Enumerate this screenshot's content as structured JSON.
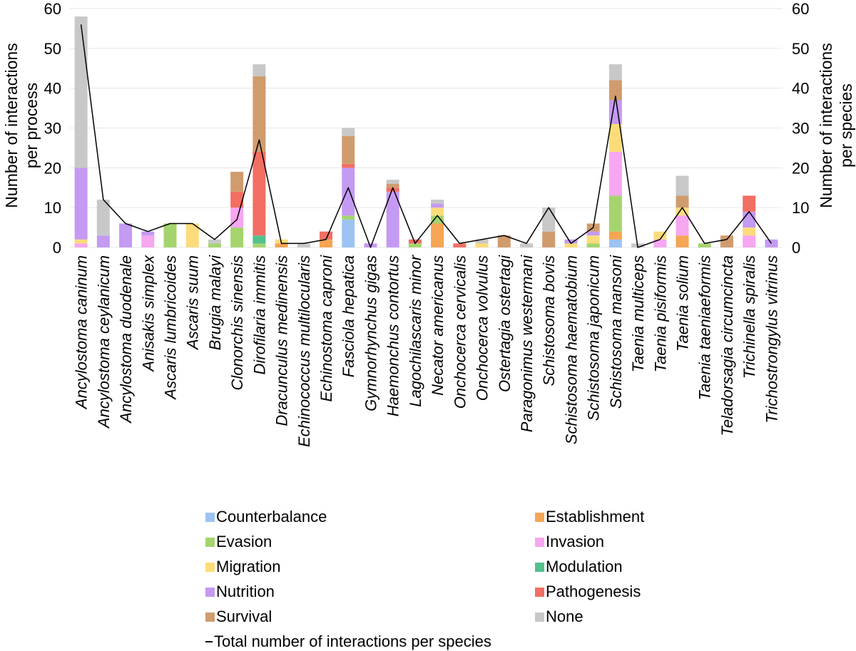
{
  "chart_data": {
    "type": "bar",
    "stacked": true,
    "categories": [
      "Ancylostoma caninum",
      "Ancylostoma ceylanicum",
      "Ancylostoma duodenale",
      "Anisakis simplex",
      "Ascaris lumbricoides",
      "Ascaris suum",
      "Brugia malayi",
      "Clonorchis sinensis",
      "Dirofilaria immitis",
      "Dracunculus medinensis",
      "Echinococcus multilocularis",
      "Echinostoma caproni",
      "Fasciola hepatica",
      "Gymnorhynchus gigas",
      "Haemonchus contortus",
      "Lagochilascaris minor",
      "Necator americanus",
      "Onchocerca cervicalis",
      "Onchocerca volvulus",
      "Ostertagia ostertagi",
      "Paragonimus westermani",
      "Schistosoma bovis",
      "Schistosoma haematobium",
      "Schistosoma japonicum",
      "Schistosoma mansoni",
      "Taenia multiceps",
      "Taenia pisiformis",
      "Taenia solium",
      "Taenia taeniaeformis",
      "Teladorsagia circumcincta",
      "Trichinella spiralis",
      "Trichostrongylus vitrinus"
    ],
    "series": [
      {
        "name": "Counterbalance",
        "color": "#9DC3F2",
        "values": [
          0,
          0,
          0,
          0,
          0,
          0,
          0,
          0,
          0,
          0,
          0,
          0,
          7,
          0,
          0,
          0,
          0,
          0,
          0,
          0,
          0,
          0,
          0,
          0,
          2,
          0,
          0,
          0,
          0,
          0,
          0,
          0
        ]
      },
      {
        "name": "Establishment",
        "color": "#F5A554",
        "values": [
          0,
          0,
          0,
          0,
          0,
          0,
          0,
          0,
          0,
          1,
          0,
          2,
          0,
          0,
          0,
          0,
          6,
          0,
          0,
          0,
          0,
          0,
          0,
          0,
          2,
          0,
          0,
          3,
          0,
          0,
          0,
          0
        ]
      },
      {
        "name": "Evasion",
        "color": "#A5D46E",
        "values": [
          0,
          0,
          0,
          0,
          6,
          0,
          1,
          5,
          1,
          0,
          0,
          0,
          1,
          0,
          0,
          1,
          2,
          0,
          0,
          0,
          0,
          0,
          0,
          1,
          9,
          0,
          0,
          0,
          1,
          0,
          0,
          0
        ]
      },
      {
        "name": "Invasion",
        "color": "#F7A6F0",
        "values": [
          1,
          0,
          0,
          3,
          0,
          0,
          0,
          5,
          0,
          0,
          0,
          0,
          0,
          0,
          0,
          0,
          0,
          0,
          0,
          0,
          0,
          0,
          0,
          0,
          11,
          0,
          2,
          5,
          0,
          0,
          3,
          0
        ]
      },
      {
        "name": "Migration",
        "color": "#FCDC7A",
        "values": [
          1,
          0,
          0,
          0,
          0,
          6,
          0,
          0,
          0,
          1,
          0,
          0,
          0,
          0,
          0,
          0,
          2,
          0,
          1,
          0,
          0,
          0,
          1,
          2,
          7,
          0,
          2,
          2,
          0,
          0,
          2,
          0
        ]
      },
      {
        "name": "Modulation",
        "color": "#52C18D",
        "values": [
          0,
          0,
          0,
          0,
          0,
          0,
          0,
          0,
          2,
          0,
          0,
          0,
          0,
          0,
          0,
          0,
          0,
          0,
          0,
          0,
          0,
          0,
          0,
          0,
          0,
          0,
          0,
          0,
          0,
          0,
          0,
          0
        ]
      },
      {
        "name": "Nutrition",
        "color": "#C49AF2",
        "values": [
          18,
          3,
          6,
          1,
          0,
          0,
          0,
          0,
          0,
          0,
          0,
          0,
          12,
          1,
          14,
          0,
          1,
          0,
          0,
          0,
          0,
          0,
          1,
          1,
          6,
          0,
          0,
          0,
          0,
          0,
          4,
          2
        ]
      },
      {
        "name": "Pathogenesis",
        "color": "#F36E63",
        "values": [
          0,
          0,
          0,
          0,
          0,
          0,
          0,
          4,
          21,
          0,
          0,
          2,
          1,
          0,
          1,
          1,
          0,
          1,
          0,
          0,
          0,
          0,
          0,
          0,
          0,
          0,
          0,
          0,
          0,
          0,
          4,
          0
        ]
      },
      {
        "name": "Survival",
        "color": "#D09C6E",
        "values": [
          0,
          0,
          0,
          0,
          0,
          0,
          0,
          5,
          19,
          0,
          0,
          0,
          7,
          0,
          1,
          0,
          0,
          0,
          0,
          3,
          0,
          4,
          0,
          2,
          5,
          0,
          0,
          3,
          0,
          3,
          0,
          0
        ]
      },
      {
        "name": "None",
        "color": "#C8C8C8",
        "values": [
          38,
          9,
          0,
          0,
          0,
          0,
          1,
          0,
          3,
          0,
          1,
          0,
          2,
          0,
          1,
          0,
          1,
          0,
          1,
          0,
          1,
          6,
          0,
          0,
          4,
          1,
          0,
          5,
          0,
          0,
          0,
          0
        ]
      }
    ],
    "line": {
      "name": "Total number of interactions per species",
      "color": "#000000",
      "values": [
        56,
        12,
        6,
        4,
        6,
        6,
        2,
        7,
        27,
        1,
        1,
        2,
        15,
        0,
        15,
        1,
        8,
        1,
        2,
        3,
        1,
        10,
        1,
        5,
        38,
        0,
        2,
        10,
        1,
        2,
        9,
        1
      ]
    },
    "ylabel_left": "Number of interactions per process",
    "ylabel_right": "Number of interactions per species",
    "ylim": [
      0,
      60
    ],
    "yticks": [
      0,
      10,
      20,
      30,
      40,
      50,
      60
    ],
    "grid": true,
    "legend_position": "bottom"
  },
  "axes": {
    "left_title_lines": [
      "Number of interactions",
      "per process"
    ],
    "right_title_lines": [
      "Number of interactions",
      "per species"
    ]
  },
  "legend": {
    "line_label": "Total number of interactions per species"
  }
}
